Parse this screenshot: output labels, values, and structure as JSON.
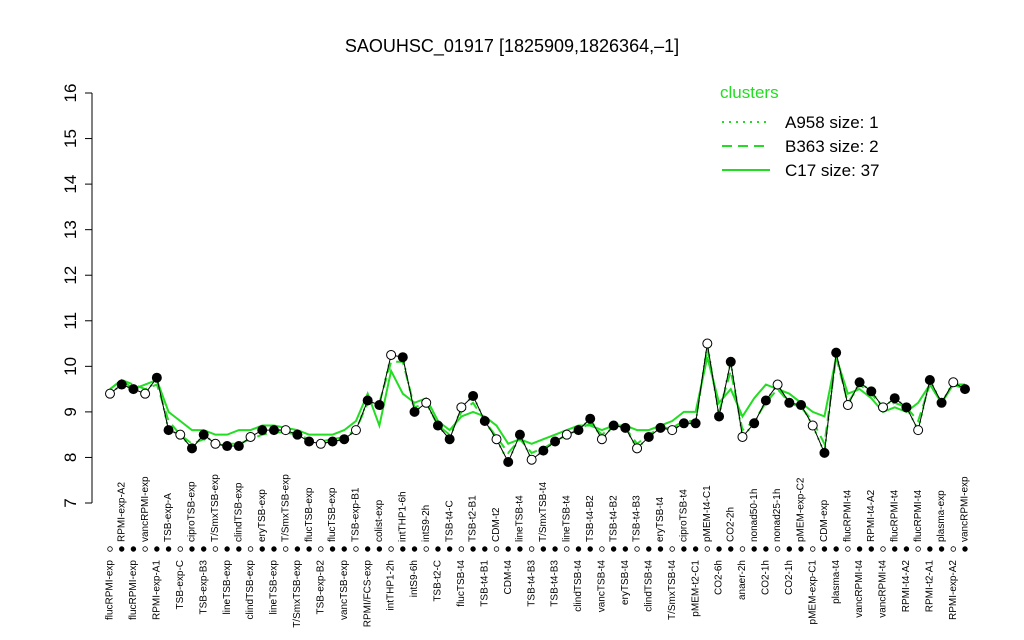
{
  "chart_data": {
    "type": "line",
    "title": "SAOUHSC_01917 [1825909,1826364,–1]",
    "categories": [
      "flucRPMI-exp",
      "RPMI-exp-A2",
      "flucRPMI-exp",
      "vancRPMI-exp",
      "RPMI-exp-A1",
      "TSB-exp-A",
      "TSB-exp-C",
      "ciproTSB-exp",
      "TSB-exp-B3",
      "T/SmxTSB-exp",
      "lineTSB-exp",
      "clindTSB-exp",
      "clindTSB-exp",
      "eryTSB-exp",
      "lineTSB-exp",
      "T/SmxTSB-exp",
      "T/SmxTSB-exp",
      "flucTSB-exp",
      "TSB-exp-B2",
      "flucTSB-exp",
      "vancTSB-exp",
      "TSB-exp-B1",
      "RPMI/FCS-exp",
      "colist-exp",
      "intTHP1-2h",
      "intTHP1-6h",
      "intS9-6h",
      "intS9-2h",
      "TSB-t2-C",
      "TSB-t4-C",
      "flucTSB-t4",
      "TSB-t2-B1",
      "TSB-t4-B1",
      "CDM-t2",
      "CDM-t4",
      "lineTSB-t4",
      "TSB-t4-B3",
      "T/SmxTSB-t4",
      "TSB-t4-B3",
      "lineTSB-t4",
      "clindTSB-t4",
      "TSB-t4-B2",
      "vancTSB-t4",
      "TSB-t4-B2",
      "eryTSB-t4",
      "TSB-t4-B3",
      "clindTSB-t4",
      "eryTSB-t4",
      "T/SmxTSB-t4",
      "ciproTSB-t4",
      "pMEM-t2-C1",
      "pMEM-t4-C1",
      "CO2-6h",
      "CO2-2h",
      "anaer-2h",
      "nonad50-1h",
      "CO2-1h",
      "nonad25-1h",
      "CO2-1h",
      "pMEM-exp-C2",
      "pMEM-exp-C1",
      "CDM-exp",
      "plasma-t4",
      "flucRPMI-t4",
      "vancRPMI-t4",
      "RPMI-t4-A2",
      "vancRPMI-t4",
      "flucRPMI-t4",
      "RPMI-t4-A2",
      "flucRPMI-t4",
      "RPMI-t2-A1",
      "plasma-exp",
      "RPMI-exp-A2",
      "vancRPMI-exp"
    ],
    "values": [
      9.4,
      9.6,
      9.5,
      9.4,
      9.75,
      8.6,
      8.5,
      8.2,
      8.5,
      8.3,
      8.25,
      8.25,
      8.45,
      8.6,
      8.6,
      8.6,
      8.5,
      8.35,
      8.3,
      8.35,
      8.4,
      8.6,
      9.25,
      9.15,
      10.25,
      10.2,
      9.0,
      9.2,
      8.7,
      8.4,
      9.1,
      9.35,
      8.8,
      8.4,
      7.9,
      8.5,
      7.95,
      8.15,
      8.35,
      8.5,
      8.6,
      8.85,
      8.4,
      8.7,
      8.65,
      8.2,
      8.45,
      8.65,
      8.6,
      8.75,
      8.75,
      10.5,
      8.9,
      10.1,
      8.45,
      8.75,
      9.25,
      9.6,
      9.2,
      9.15,
      8.7,
      8.1,
      10.3,
      9.15,
      9.65,
      9.45,
      9.1,
      9.3,
      9.1,
      8.6,
      9.7,
      9.2,
      9.65,
      9.5
    ],
    "color": "#000000",
    "legend_title": "clusters",
    "series": [
      {
        "name": "A958 size: 1",
        "color": "#22dd22",
        "line_style": "dotted",
        "values": [
          9.4,
          9.6,
          9.5,
          9.4,
          9.75,
          8.6,
          8.5,
          8.2,
          8.5,
          8.3,
          8.25,
          8.25,
          8.45,
          8.6,
          8.6,
          8.6,
          8.5,
          8.35,
          8.3,
          8.35,
          8.4,
          8.6,
          9.25,
          9.15,
          10.25,
          10.2,
          9.0,
          9.2,
          8.7,
          8.4,
          9.1,
          9.35,
          8.8,
          8.4,
          7.9,
          8.5,
          7.95,
          8.15,
          8.35,
          8.5,
          8.6,
          8.85,
          8.4,
          8.7,
          8.65,
          8.2,
          8.45,
          8.65,
          8.6,
          8.75,
          8.75,
          10.5,
          8.9,
          10.1,
          8.45,
          8.75,
          9.25,
          9.6,
          9.2,
          9.15,
          8.7,
          8.1,
          10.3,
          9.15,
          9.65,
          9.45,
          9.1,
          9.3,
          9.1,
          8.6,
          9.7,
          9.2,
          9.65,
          9.5
        ]
      },
      {
        "name": "B363 size: 2",
        "color": "#22dd22",
        "line_style": "dashed",
        "values": [
          9.5,
          9.7,
          9.6,
          9.5,
          9.6,
          8.8,
          8.5,
          8.3,
          8.4,
          8.3,
          8.3,
          8.3,
          8.4,
          8.5,
          8.55,
          8.55,
          8.5,
          8.4,
          8.35,
          8.4,
          8.45,
          8.6,
          9.2,
          9.2,
          10.1,
          10.1,
          9.1,
          9.2,
          8.7,
          8.5,
          9.0,
          9.2,
          8.8,
          8.45,
          8.1,
          8.4,
          8.1,
          8.2,
          8.35,
          8.5,
          8.6,
          8.75,
          8.5,
          8.7,
          8.65,
          8.3,
          8.5,
          8.65,
          8.65,
          8.8,
          8.8,
          10.4,
          9.0,
          9.9,
          8.6,
          8.8,
          9.2,
          9.5,
          9.2,
          9.1,
          8.8,
          8.3,
          10.2,
          9.2,
          9.6,
          9.4,
          9.1,
          9.2,
          9.1,
          8.8,
          9.6,
          9.2,
          9.6,
          9.5
        ]
      },
      {
        "name": "C17 size: 37",
        "color": "#22dd22",
        "line_style": "solid",
        "values": [
          9.5,
          9.7,
          9.5,
          9.6,
          9.7,
          9.0,
          8.8,
          8.6,
          8.6,
          8.5,
          8.5,
          8.6,
          8.6,
          8.7,
          8.7,
          8.65,
          8.6,
          8.5,
          8.5,
          8.5,
          8.6,
          8.8,
          9.4,
          8.7,
          9.9,
          9.4,
          9.2,
          9.3,
          8.8,
          8.6,
          8.9,
          9.0,
          8.9,
          8.7,
          8.3,
          8.4,
          8.3,
          8.4,
          8.5,
          8.6,
          8.7,
          8.7,
          8.6,
          8.7,
          8.7,
          8.6,
          8.6,
          8.7,
          8.8,
          9.0,
          9.0,
          10.2,
          9.2,
          9.5,
          8.9,
          9.3,
          9.6,
          9.5,
          9.4,
          9.2,
          9.0,
          8.9,
          10.2,
          9.4,
          9.5,
          9.3,
          9.0,
          9.1,
          9.0,
          9.2,
          9.6,
          9.2,
          9.6,
          9.6
        ]
      }
    ],
    "ylim": [
      7,
      16
    ],
    "yticks": [
      7,
      8,
      9,
      10,
      11,
      12,
      13,
      14,
      15,
      16
    ]
  }
}
